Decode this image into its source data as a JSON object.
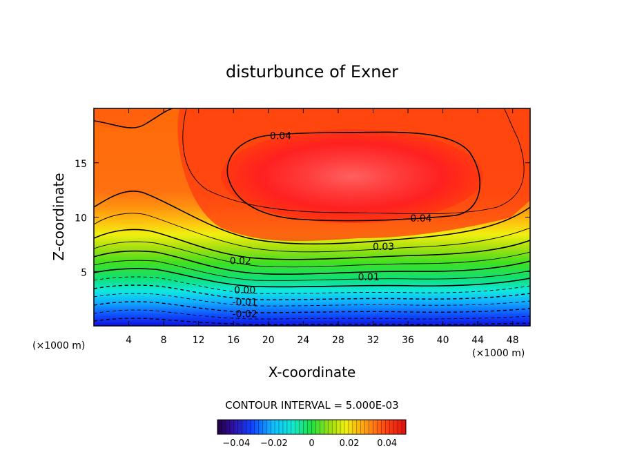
{
  "chart_data": {
    "type": "contour",
    "title": "disturbunce of Exner",
    "xlabel": "X-coordinate",
    "ylabel": "Z-coordinate",
    "x_unit_left": "(×1000 m)",
    "x_unit_right": "(×1000 m)",
    "xlim": [
      0,
      50
    ],
    "ylim": [
      0,
      20
    ],
    "x_ticks": [
      4,
      8,
      12,
      16,
      20,
      24,
      28,
      32,
      36,
      40,
      44,
      48
    ],
    "y_ticks": [
      5,
      10,
      15
    ],
    "contour_interval_text": "CONTOUR INTERVAL = 5.000E-03",
    "contour_interval": 0.005,
    "field_range": [
      -0.045,
      0.045
    ],
    "colormap": "rainbow (blue → cyan → green → yellow → orange → red)",
    "contour_labels": [
      {
        "text": "0.04",
        "x": 21.4,
        "z": 17.5
      },
      {
        "text": "0.04",
        "x": 37.5,
        "z": 9.9
      },
      {
        "text": "0.03",
        "x": 33.2,
        "z": 7.3
      },
      {
        "text": "0.02",
        "x": 16.8,
        "z": 6.0
      },
      {
        "text": "0.01",
        "x": 31.5,
        "z": 4.5
      },
      {
        "text": "0.00",
        "x": 17.3,
        "z": 3.3
      },
      {
        "text": "-0.01",
        "x": 17.3,
        "z": 2.2
      },
      {
        "text": "-0.02",
        "x": 17.3,
        "z": 1.1
      }
    ],
    "colorbar": {
      "ticks": [
        "−0.04",
        "−0.02",
        "0",
        "0.02",
        "0.04"
      ],
      "tick_values": [
        -0.04,
        -0.02,
        0,
        0.02,
        0.04
      ],
      "range": [
        -0.05,
        0.05
      ]
    }
  }
}
